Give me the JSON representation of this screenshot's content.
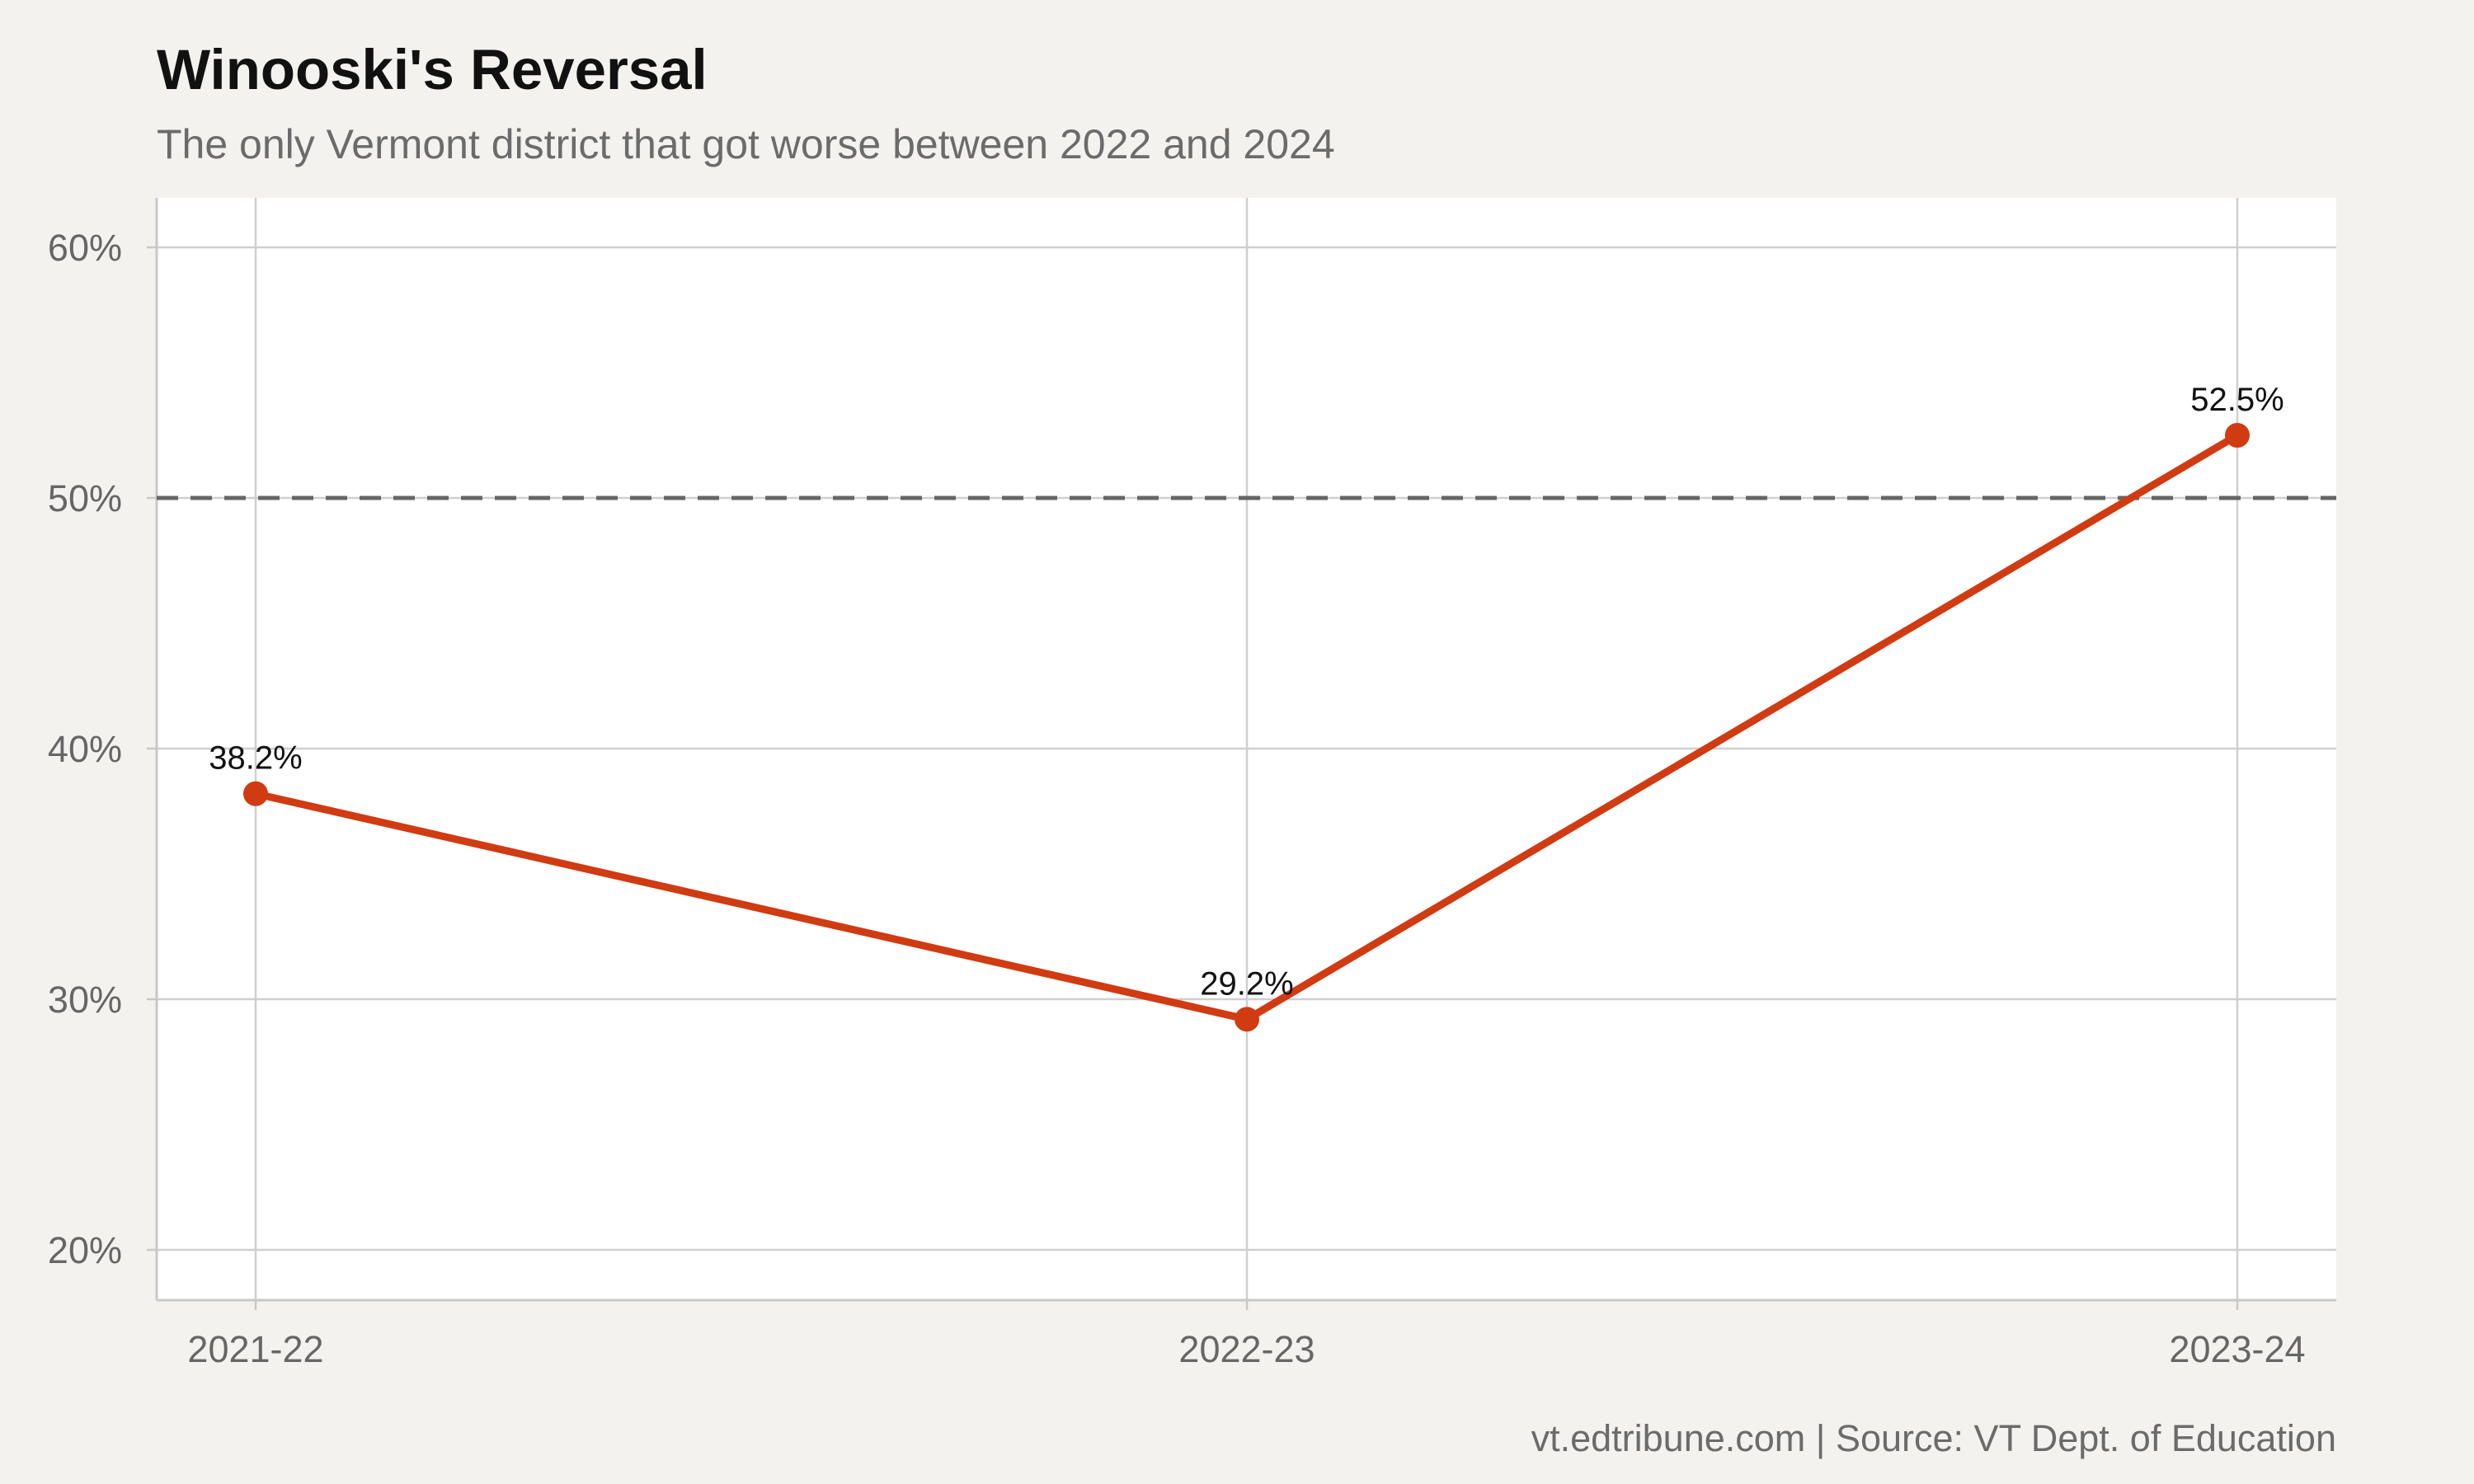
{
  "chart_data": {
    "type": "line",
    "title": "Winooski's Reversal",
    "subtitle": "The only Vermont district that got worse between 2022 and 2024",
    "caption": "vt.edtribune.com | Source: VT Dept. of Education",
    "xlabel": "",
    "ylabel": "",
    "categories": [
      "2021-22",
      "2022-23",
      "2023-24"
    ],
    "series": [
      {
        "values": [
          38.2,
          29.2,
          52.5
        ],
        "labels": [
          "38.2%",
          "29.2%",
          "52.5%"
        ],
        "color": "#d03b12"
      }
    ],
    "ylim": [
      18,
      62
    ],
    "yticks": [
      20,
      30,
      40,
      50,
      60
    ],
    "ytick_labels": [
      "20%",
      "30%",
      "40%",
      "50%",
      "60%"
    ],
    "reference_line": {
      "value": 50,
      "style": "dashed",
      "color": "#666666"
    },
    "grid": true,
    "legend": "none",
    "colors": {
      "background": "#f4f2ee",
      "panel": "#ffffff",
      "grid": "#cfcfcf",
      "axis": "#c8c8c8",
      "line": "#d03b12"
    }
  }
}
